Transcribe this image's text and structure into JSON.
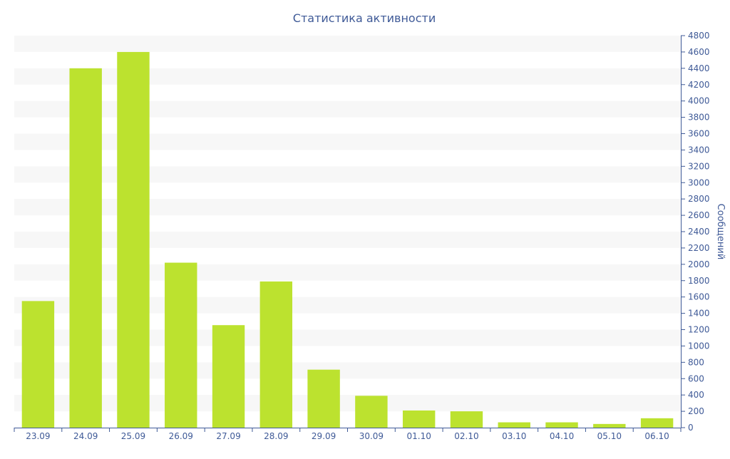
{
  "colors": {
    "bar": "#bce22f",
    "text": "#3f5a97",
    "axis": "#3f5a97",
    "band": "#f7f7f7"
  },
  "chart_data": {
    "type": "bar",
    "title": "Статистика активности",
    "xlabel": "",
    "ylabel": "Сообщений",
    "y_axis_side": "right",
    "ylim": [
      0,
      4800
    ],
    "ytick_step": 200,
    "yticks": [
      "0",
      "200",
      "400",
      "600",
      "800",
      "1000",
      "1200",
      "1400",
      "1600",
      "1800",
      "2000",
      "2200",
      "2400",
      "2600",
      "2800",
      "3000",
      "3200",
      "3400",
      "3600",
      "3800",
      "4000",
      "4200",
      "4400",
      "4600",
      "4800"
    ],
    "grid": "alternating horizontal bands",
    "legend": "none",
    "categories": [
      "23.09",
      "24.09",
      "25.09",
      "26.09",
      "27.09",
      "28.09",
      "29.09",
      "30.09",
      "01.10",
      "02.10",
      "03.10",
      "04.10",
      "05.10",
      "06.10"
    ],
    "values": [
      1550,
      4400,
      4600,
      2020,
      1255,
      1790,
      710,
      390,
      210,
      200,
      65,
      65,
      45,
      115
    ]
  }
}
